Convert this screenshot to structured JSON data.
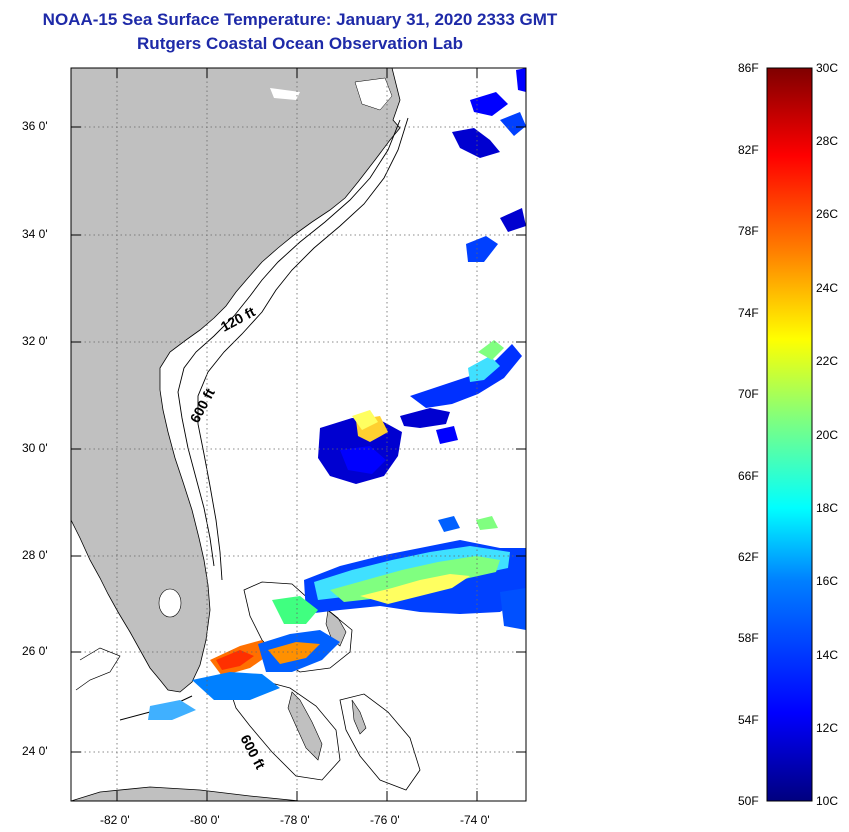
{
  "title": "NOAA-15 Sea Surface Temperature:  January 31, 2020 2333 GMT",
  "subtitle": "Rutgers Coastal Ocean Observation Lab",
  "map": {
    "lon_range": [
      -83,
      -73
    ],
    "lat_range": [
      23,
      37
    ],
    "lon_ticks": [
      "-82 0'",
      "-80 0'",
      "-78 0'",
      "-76 0'",
      "-74 0'"
    ],
    "lat_ticks": [
      "36 0'",
      "34 0'",
      "32 0'",
      "30 0'",
      "28 0'",
      "26 0'",
      "24 0'"
    ],
    "isobath_labels": [
      "120 ft",
      "600 ft",
      "600 ft"
    ],
    "land_color": "#c0c0c0",
    "ocean_color": "#ffffff"
  },
  "colorbar": {
    "fahrenheit_labels": [
      "86F",
      "82F",
      "78F",
      "74F",
      "70F",
      "66F",
      "62F",
      "58F",
      "54F",
      "50F"
    ],
    "celsius_labels": [
      "30C",
      "28C",
      "26C",
      "24C",
      "22C",
      "20C",
      "18C",
      "16C",
      "14C",
      "12C",
      "10C"
    ],
    "colors": [
      "#00007f",
      "#0000ff",
      "#007fff",
      "#00ffff",
      "#7fff7f",
      "#ffff00",
      "#ff7f00",
      "#ff0000",
      "#7f0000"
    ]
  }
}
